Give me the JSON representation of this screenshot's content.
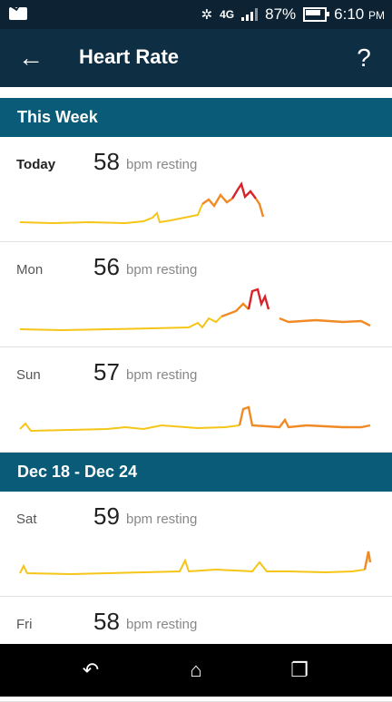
{
  "status_bar": {
    "battery_pct": "87%",
    "time": "6:10",
    "am_pm": "PM",
    "network": "4G"
  },
  "header": {
    "title": "Heart Rate"
  },
  "sections": [
    {
      "title": "This Week"
    },
    {
      "title": "Dec 18 - Dec 24"
    }
  ],
  "days": [
    {
      "day": "Today",
      "bpm": "58",
      "unit": "bpm resting"
    },
    {
      "day": "Mon",
      "bpm": "56",
      "unit": "bpm resting"
    },
    {
      "day": "Sun",
      "bpm": "57",
      "unit": "bpm resting"
    },
    {
      "day": "Sat",
      "bpm": "59",
      "unit": "bpm resting"
    },
    {
      "day": "Fri",
      "bpm": "58",
      "unit": "bpm resting"
    }
  ],
  "colors": {
    "low": "#f5c518",
    "mid": "#f08a24",
    "high": "#d8232a",
    "app_bar": "#0e2e43",
    "section": "#0a5b77"
  }
}
